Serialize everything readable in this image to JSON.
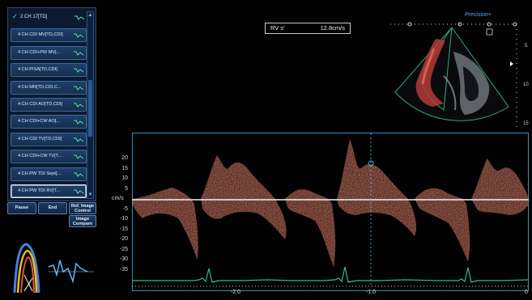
{
  "protocol_list": {
    "items": [
      {
        "label": "2 CH 17[TD]",
        "selected": false
      },
      {
        "label": "4 CH CDI MV[TD,CDI]",
        "selected": false
      },
      {
        "label": "4 CH CDI+PW MV[...",
        "selected": false
      },
      {
        "label": "4 CH PISA[TD,CDI]",
        "selected": false
      },
      {
        "label": "4 CH MR[TD,CDI,C...",
        "selected": false
      },
      {
        "label": "4 CH CDI AO[TD,CDI]",
        "selected": false
      },
      {
        "label": "4 CH CDI+CW AO[...",
        "selected": false
      },
      {
        "label": "4 CH CDI TV[TD,CDI]",
        "selected": false
      },
      {
        "label": "4 CH CDI+CW TV[T...",
        "selected": false
      },
      {
        "label": "4 CH PW TDI Sept[...",
        "selected": false
      },
      {
        "label": "4 CH PW TDI RV[T...",
        "selected": true
      }
    ]
  },
  "controls": {
    "pause": "Pause",
    "end": "End",
    "ref_image_control": "Ref. Image Control",
    "image_compare": "Image Compare"
  },
  "measurement": {
    "label": "RV s'",
    "value": "12.8cm/s"
  },
  "brand": "Precision+",
  "depth_scale": [
    "5",
    "10",
    "15"
  ],
  "spectral": {
    "unit_label": "cm/s",
    "y_ticks": [
      "20",
      "15",
      "10",
      "5",
      "-5",
      "-10",
      "-15",
      "-20",
      "-25",
      "-30",
      "-35"
    ],
    "x_ticks": [
      "-2.0",
      "-1.0",
      "0"
    ]
  },
  "colors": {
    "doppler": "#f08a72",
    "ecg": "#2dbf8e",
    "frame": "#2f8fb8",
    "brand": "#5aa8ff",
    "button_fill": "#15304f"
  }
}
